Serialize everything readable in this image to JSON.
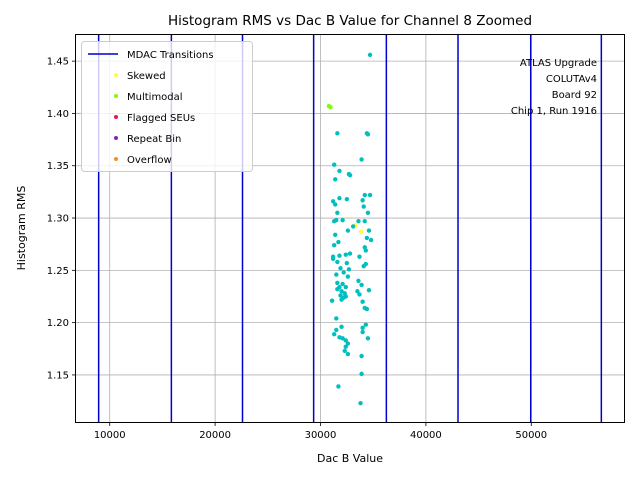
{
  "chart_data": {
    "type": "scatter",
    "title": "Histogram RMS vs Dac B Value for Channel 8 Zoomed",
    "xlabel": "Dac B Value",
    "ylabel": "Histogram RMS",
    "xlim": [
      6800,
      58800
    ],
    "ylim": [
      1.105,
      1.475
    ],
    "xticks": [
      10000,
      20000,
      30000,
      40000,
      50000
    ],
    "yticks": [
      1.15,
      1.2,
      1.25,
      1.3,
      1.35,
      1.4,
      1.45
    ],
    "grid": true,
    "legend_position": "upper-left",
    "transitions": {
      "name": "MDAC Transitions",
      "color": "#0000cc",
      "x": [
        8950,
        15850,
        22600,
        29350,
        36250,
        43050,
        49950,
        56650
      ]
    },
    "series": [
      {
        "name": "Skewed",
        "color": "#ffff33",
        "points": [
          [
            33850,
            1.287
          ],
          [
            33300,
            1.293
          ]
        ]
      },
      {
        "name": "Multimodal",
        "color": "#7fff00",
        "points": [
          [
            30800,
            1.407
          ],
          [
            30950,
            1.406
          ]
        ]
      },
      {
        "name": "Flagged SEUs",
        "color": "#e6194b",
        "points": []
      },
      {
        "name": "Repeat Bin",
        "color": "#911eb4",
        "points": []
      },
      {
        "name": "Overflow",
        "color": "#ff8c1a",
        "points": []
      },
      {
        "name": "",
        "color": "#00bfbf",
        "points": [
          [
            34700,
            1.456
          ],
          [
            31600,
            1.381
          ],
          [
            34400,
            1.381
          ],
          [
            34500,
            1.38
          ],
          [
            33900,
            1.356
          ],
          [
            31300,
            1.351
          ],
          [
            31800,
            1.345
          ],
          [
            32700,
            1.342
          ],
          [
            32800,
            1.341
          ],
          [
            31400,
            1.337
          ],
          [
            34200,
            1.322
          ],
          [
            34700,
            1.322
          ],
          [
            31800,
            1.319
          ],
          [
            32500,
            1.318
          ],
          [
            34000,
            1.317
          ],
          [
            31200,
            1.316
          ],
          [
            31400,
            1.313
          ],
          [
            34100,
            1.311
          ],
          [
            34500,
            1.305
          ],
          [
            31600,
            1.305
          ],
          [
            32100,
            1.298
          ],
          [
            31500,
            1.298
          ],
          [
            33600,
            1.297
          ],
          [
            31300,
            1.297
          ],
          [
            34200,
            1.297
          ],
          [
            33100,
            1.292
          ],
          [
            32600,
            1.288
          ],
          [
            34600,
            1.288
          ],
          [
            31400,
            1.284
          ],
          [
            34400,
            1.281
          ],
          [
            34800,
            1.279
          ],
          [
            31700,
            1.277
          ],
          [
            31300,
            1.274
          ],
          [
            34200,
            1.272
          ],
          [
            34300,
            1.269
          ],
          [
            32800,
            1.266
          ],
          [
            32400,
            1.265
          ],
          [
            31800,
            1.264
          ],
          [
            31200,
            1.263
          ],
          [
            33700,
            1.263
          ],
          [
            31200,
            1.261
          ],
          [
            31600,
            1.258
          ],
          [
            32500,
            1.257
          ],
          [
            34300,
            1.256
          ],
          [
            34100,
            1.254
          ],
          [
            31900,
            1.252
          ],
          [
            32700,
            1.251
          ],
          [
            32200,
            1.248
          ],
          [
            31500,
            1.246
          ],
          [
            32600,
            1.244
          ],
          [
            33600,
            1.24
          ],
          [
            31600,
            1.238
          ],
          [
            32100,
            1.237
          ],
          [
            33900,
            1.236
          ],
          [
            31800,
            1.234
          ],
          [
            32400,
            1.234
          ],
          [
            31600,
            1.232
          ],
          [
            34600,
            1.231
          ],
          [
            32000,
            1.23
          ],
          [
            33500,
            1.23
          ],
          [
            32300,
            1.228
          ],
          [
            33700,
            1.227
          ],
          [
            31900,
            1.226
          ],
          [
            32400,
            1.225
          ],
          [
            32200,
            1.224
          ],
          [
            32000,
            1.222
          ],
          [
            31100,
            1.221
          ],
          [
            34000,
            1.22
          ],
          [
            34200,
            1.214
          ],
          [
            34400,
            1.213
          ],
          [
            31500,
            1.204
          ],
          [
            34300,
            1.198
          ],
          [
            32000,
            1.196
          ],
          [
            34000,
            1.195
          ],
          [
            31500,
            1.193
          ],
          [
            34000,
            1.191
          ],
          [
            31300,
            1.189
          ],
          [
            31800,
            1.186
          ],
          [
            32100,
            1.185
          ],
          [
            34500,
            1.185
          ],
          [
            32400,
            1.183
          ],
          [
            32600,
            1.18
          ],
          [
            32400,
            1.177
          ],
          [
            32300,
            1.173
          ],
          [
            32600,
            1.17
          ],
          [
            33900,
            1.168
          ],
          [
            33900,
            1.151
          ],
          [
            31700,
            1.139
          ],
          [
            33800,
            1.123
          ]
        ]
      }
    ],
    "annotation": [
      "ATLAS Upgrade",
      "COLUTAv4",
      "Board 92",
      "Chip 1, Run 1916"
    ]
  }
}
